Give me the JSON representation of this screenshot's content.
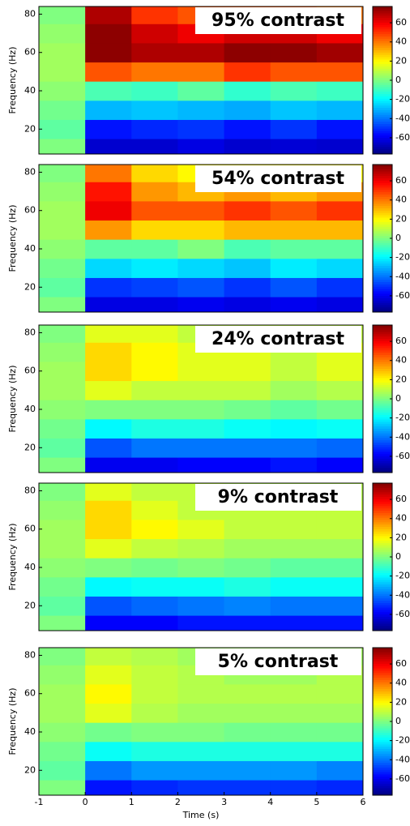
{
  "chart_data": [
    {
      "type": "heatmap",
      "title": "95% contrast",
      "ylabel": "Frequency (Hz)",
      "colormap": "jet",
      "x_bins": [
        -1,
        0,
        1,
        2,
        3,
        4,
        5,
        6
      ],
      "y_bins": [
        7,
        15,
        25,
        35,
        45,
        55,
        65,
        75,
        84
      ],
      "values": [
        [
          0,
          -65,
          -65,
          -62,
          -65,
          -64,
          -65
        ],
        [
          -5,
          -55,
          -52,
          -50,
          -55,
          -50,
          -55
        ],
        [
          -2,
          -30,
          -28,
          -30,
          -32,
          -28,
          -30
        ],
        [
          2,
          -8,
          -10,
          -5,
          -12,
          -8,
          -10
        ],
        [
          5,
          45,
          40,
          40,
          50,
          45,
          45
        ],
        [
          5,
          75,
          70,
          70,
          75,
          75,
          72
        ],
        [
          3,
          75,
          65,
          60,
          65,
          65,
          60
        ],
        [
          0,
          70,
          50,
          45,
          45,
          45,
          40
        ]
      ],
      "xlim": [
        -1,
        6
      ],
      "ylim": [
        7,
        84
      ],
      "yticks": [
        20,
        40,
        60,
        80
      ],
      "clim": [
        -77,
        77
      ],
      "cticks": [
        -60,
        -40,
        -20,
        0,
        20,
        40,
        60
      ]
    },
    {
      "type": "heatmap",
      "title": "54% contrast",
      "ylabel": "Frequency (Hz)",
      "colormap": "jet",
      "x_bins": [
        -1,
        0,
        1,
        2,
        3,
        4,
        5,
        6
      ],
      "y_bins": [
        7,
        15,
        25,
        35,
        45,
        55,
        65,
        75,
        84
      ],
      "values": [
        [
          0,
          -62,
          -62,
          -60,
          -62,
          -60,
          -62
        ],
        [
          -5,
          -50,
          -48,
          -45,
          -50,
          -45,
          -50
        ],
        [
          -2,
          -25,
          -22,
          -25,
          -28,
          -22,
          -25
        ],
        [
          2,
          -5,
          -5,
          0,
          -8,
          -5,
          -5
        ],
        [
          5,
          35,
          25,
          25,
          30,
          30,
          30
        ],
        [
          5,
          60,
          45,
          45,
          50,
          45,
          50
        ],
        [
          3,
          55,
          35,
          30,
          35,
          30,
          35
        ],
        [
          0,
          40,
          25,
          20,
          20,
          20,
          20
        ]
      ],
      "xlim": [
        -1,
        6
      ],
      "ylim": [
        7,
        84
      ],
      "yticks": [
        20,
        40,
        60,
        80
      ],
      "clim": [
        -77,
        77
      ],
      "cticks": [
        -60,
        -40,
        -20,
        0,
        20,
        40,
        60
      ]
    },
    {
      "type": "heatmap",
      "title": "24% contrast",
      "ylabel": "Frequency (Hz)",
      "colormap": "jet",
      "x_bins": [
        -1,
        0,
        1,
        2,
        3,
        4,
        5,
        6
      ],
      "y_bins": [
        7,
        15,
        25,
        35,
        45,
        55,
        65,
        75,
        84
      ],
      "values": [
        [
          0,
          -60,
          -60,
          -58,
          -58,
          -55,
          -58
        ],
        [
          -5,
          -45,
          -40,
          -40,
          -40,
          -40,
          -42
        ],
        [
          -2,
          -20,
          -15,
          -15,
          -18,
          -20,
          -18
        ],
        [
          2,
          0,
          0,
          0,
          -2,
          -5,
          -2
        ],
        [
          5,
          15,
          10,
          10,
          10,
          5,
          8
        ],
        [
          5,
          25,
          20,
          15,
          15,
          10,
          15
        ],
        [
          3,
          25,
          20,
          15,
          15,
          10,
          15
        ],
        [
          0,
          15,
          15,
          10,
          10,
          10,
          10
        ]
      ],
      "xlim": [
        -1,
        6
      ],
      "ylim": [
        7,
        84
      ],
      "yticks": [
        20,
        40,
        60,
        80
      ],
      "clim": [
        -77,
        77
      ],
      "cticks": [
        -60,
        -40,
        -20,
        0,
        20,
        40,
        60
      ]
    },
    {
      "type": "heatmap",
      "title": "9% contrast",
      "ylabel": "Frequency (Hz)",
      "colormap": "jet",
      "x_bins": [
        -1,
        0,
        1,
        2,
        3,
        4,
        5,
        6
      ],
      "y_bins": [
        7,
        15,
        25,
        35,
        45,
        55,
        65,
        75,
        84
      ],
      "values": [
        [
          0,
          -58,
          -58,
          -55,
          -55,
          -55,
          -55
        ],
        [
          -5,
          -45,
          -42,
          -40,
          -38,
          -40,
          -40
        ],
        [
          -2,
          -20,
          -18,
          -18,
          -15,
          -18,
          -18
        ],
        [
          2,
          0,
          -2,
          0,
          -2,
          -5,
          -5
        ],
        [
          5,
          15,
          10,
          8,
          5,
          5,
          5
        ],
        [
          5,
          25,
          20,
          15,
          10,
          10,
          10
        ],
        [
          3,
          25,
          15,
          10,
          10,
          10,
          10
        ],
        [
          0,
          15,
          10,
          10,
          8,
          8,
          8
        ]
      ],
      "xlim": [
        -1,
        6
      ],
      "ylim": [
        7,
        84
      ],
      "yticks": [
        20,
        40,
        60,
        80
      ],
      "clim": [
        -77,
        77
      ],
      "cticks": [
        -60,
        -40,
        -20,
        0,
        20,
        40,
        60
      ]
    },
    {
      "type": "heatmap",
      "title": "5% contrast",
      "ylabel": "Frequency (Hz)",
      "xlabel": "Time (s)",
      "colormap": "jet",
      "x_bins": [
        -1,
        0,
        1,
        2,
        3,
        4,
        5,
        6
      ],
      "y_bins": [
        7,
        15,
        25,
        35,
        45,
        55,
        65,
        75,
        84
      ],
      "values": [
        [
          0,
          -55,
          -52,
          -50,
          -50,
          -50,
          -52
        ],
        [
          -5,
          -40,
          -35,
          -35,
          -35,
          -35,
          -38
        ],
        [
          -2,
          -18,
          -15,
          -15,
          -15,
          -15,
          -15
        ],
        [
          2,
          -2,
          0,
          0,
          -2,
          -2,
          -2
        ],
        [
          5,
          15,
          8,
          5,
          5,
          5,
          5
        ],
        [
          5,
          20,
          10,
          8,
          8,
          8,
          8
        ],
        [
          3,
          15,
          10,
          8,
          5,
          5,
          8
        ],
        [
          0,
          10,
          8,
          5,
          5,
          5,
          5
        ]
      ],
      "xlim": [
        -1,
        6
      ],
      "ylim": [
        7,
        84
      ],
      "xticks": [
        -1,
        0,
        1,
        2,
        3,
        4,
        5,
        6
      ],
      "yticks": [
        20,
        40,
        60,
        80
      ],
      "clim": [
        -77,
        77
      ],
      "cticks": [
        -60,
        -40,
        -20,
        0,
        20,
        40,
        60
      ]
    }
  ]
}
